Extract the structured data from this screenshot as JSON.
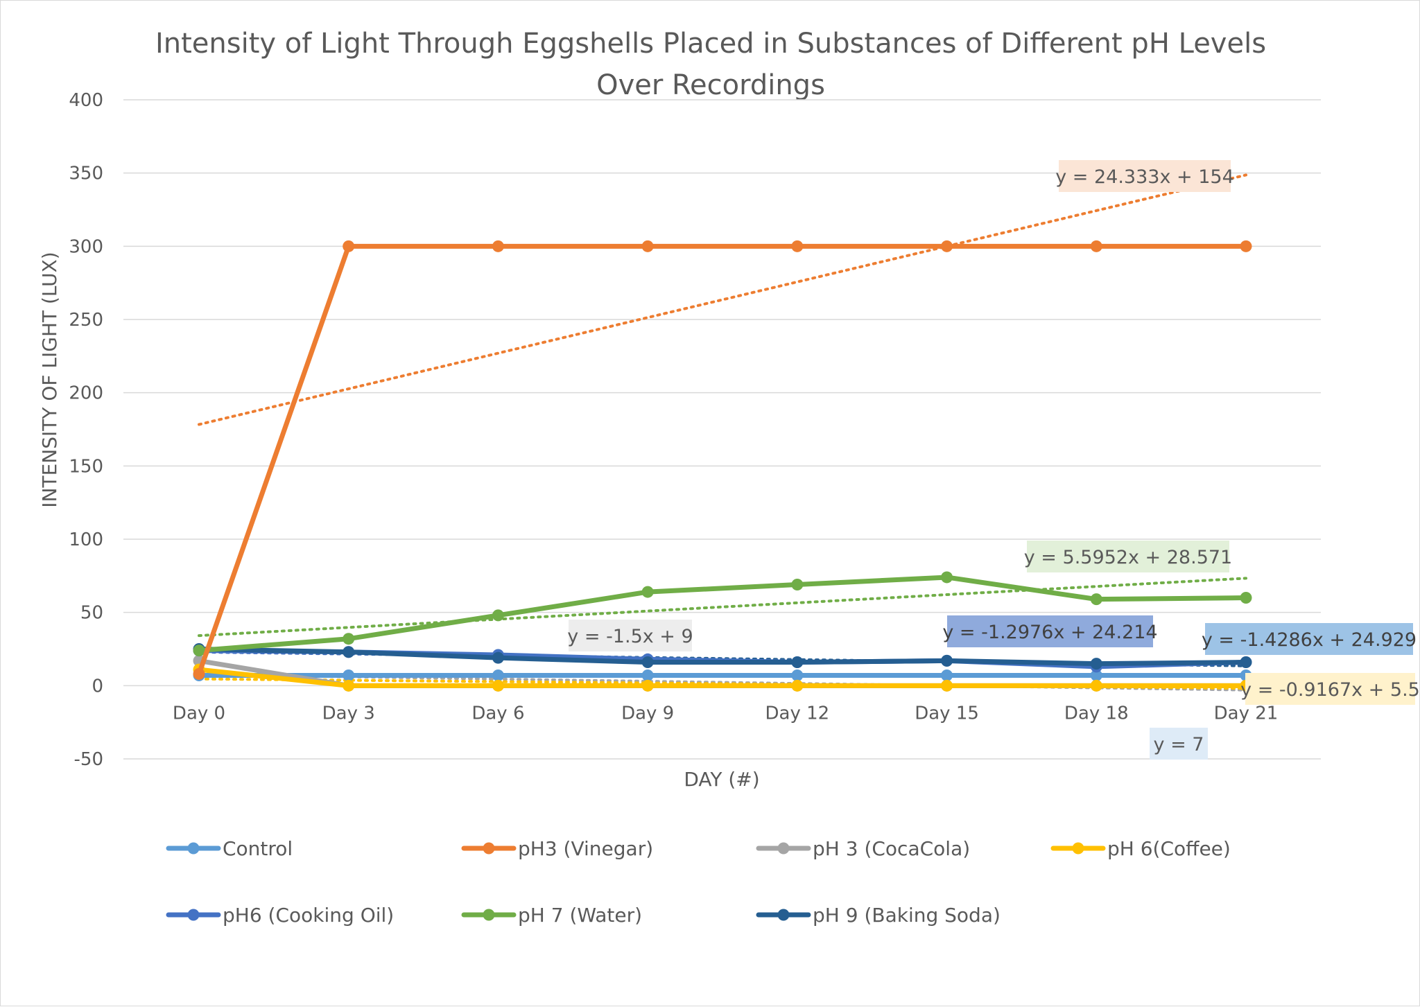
{
  "chart_data": {
    "type": "line",
    "title_lines": [
      "Intensity of Light Through Eggshells Placed in Substances of Different pH Levels",
      "Over Recordings"
    ],
    "xlabel": "DAY (#)",
    "ylabel": "INTENSITY OF LIGHT (LUX)",
    "categories": [
      "Day 0",
      "Day 3",
      "Day 6",
      "Day 9",
      "Day 12",
      "Day 15",
      "Day 18",
      "Day 21"
    ],
    "ylim": [
      -50,
      400
    ],
    "yticks": [
      -50,
      0,
      50,
      100,
      150,
      200,
      250,
      300,
      350,
      400
    ],
    "grid": true,
    "legend_position": "bottom",
    "series": [
      {
        "name": "Control",
        "color": "#5B9BD5",
        "values": [
          7,
          7,
          7,
          7,
          7,
          7,
          7,
          7
        ]
      },
      {
        "name": "pH3 (Vinegar)",
        "color": "#ED7D31",
        "values": [
          8,
          300,
          300,
          300,
          300,
          300,
          300,
          300
        ]
      },
      {
        "name": "pH 3 (CocaCola)",
        "color": "#A5A5A5",
        "values": [
          17,
          0,
          0,
          0,
          0,
          0,
          0,
          0
        ]
      },
      {
        "name": "pH 6(Coffee)",
        "color": "#FFC000",
        "values": [
          11,
          0,
          0,
          0,
          0,
          0,
          0,
          0
        ]
      },
      {
        "name": "pH6 (Cooking Oil)",
        "color": "#4472C4",
        "values": [
          24,
          23,
          21,
          18,
          16,
          17,
          13,
          16
        ]
      },
      {
        "name": "pH 7 (Water)",
        "color": "#70AD47",
        "values": [
          24,
          32,
          48,
          64,
          69,
          74,
          59,
          60
        ]
      },
      {
        "name": "pH 9 (Baking Soda)",
        "color": "#255E91",
        "values": [
          25,
          23,
          19,
          16,
          16,
          17,
          15,
          16
        ]
      }
    ],
    "trendlines": [
      {
        "series": "pH3 (Vinegar)",
        "color": "#ED7D31",
        "slope": 24.333,
        "intercept": 154
      },
      {
        "series": "pH 7 (Water)",
        "color": "#70AD47",
        "slope": 5.5952,
        "intercept": 28.571
      },
      {
        "series": "pH 3 (CocaCola)",
        "color": "#A5A5A5",
        "slope": -1.5,
        "intercept": 9
      },
      {
        "series": "pH6 (Cooking Oil)",
        "color": "#4472C4",
        "slope": -1.2976,
        "intercept": 24.214
      },
      {
        "series": "pH 9 (Baking Soda)",
        "color": "#255E91",
        "slope": -1.4286,
        "intercept": 24.929
      },
      {
        "series": "pH 6(Coffee)",
        "color": "#FFC000",
        "slope": -0.9167,
        "intercept": 5.5
      },
      {
        "series": "Control",
        "color": "#5B9BD5",
        "slope": 0,
        "intercept": 7
      }
    ],
    "trend_equations": [
      {
        "text": "y = 24.333x + 154",
        "bg": "#FBE5D6",
        "fg": "#595959"
      },
      {
        "text": "y = 5.5952x + 28.571",
        "bg": "#E2F0D9",
        "fg": "#595959"
      },
      {
        "text": "y = -1.5x + 9",
        "bg": "#EDEDED",
        "fg": "#595959"
      },
      {
        "text": "y = -1.2976x + 24.214",
        "bg": "#8FAADC",
        "fg": "#404040"
      },
      {
        "text": "y = -1.4286x + 24.929",
        "bg": "#9DC3E6",
        "fg": "#404040"
      },
      {
        "text": "y = -0.9167x + 5.5",
        "bg": "#FFF2CC",
        "fg": "#595959"
      },
      {
        "text": "y = 7",
        "bg": "#DEEBF7",
        "fg": "#595959"
      }
    ]
  }
}
